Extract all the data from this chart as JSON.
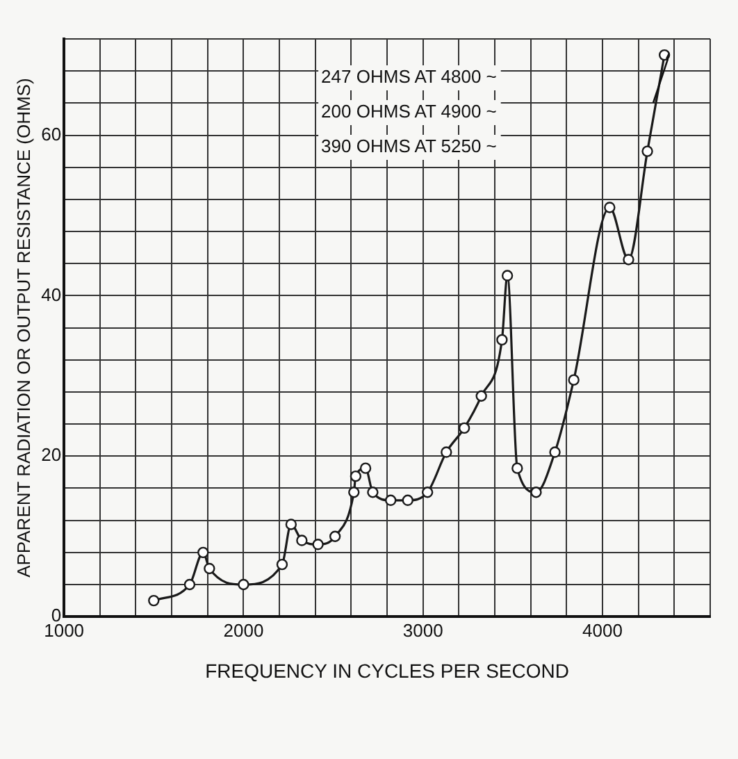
{
  "chart_data": {
    "type": "line",
    "xlabel": "FREQUENCY IN CYCLES PER SECOND",
    "ylabel": "APPARENT RADIATION OR OUTPUT RESISTANCE (OHMS)",
    "annotations": [
      "247 OHMS AT 4800 ~",
      "200 OHMS AT 4900 ~",
      "390 OHMS AT 5250 ~"
    ],
    "x": [
      1500,
      1700,
      1775,
      1810,
      2000,
      2215,
      2265,
      2325,
      2415,
      2510,
      2615,
      2625,
      2680,
      2720,
      2820,
      2915,
      3025,
      3130,
      3230,
      3325,
      3440,
      3470,
      3525,
      3630,
      3735,
      3840,
      4040,
      4145,
      4250,
      4345
    ],
    "series": [
      {
        "color": "#1a1a1a",
        "values": [
          2,
          4,
          8,
          6,
          4,
          6.5,
          11.5,
          9.5,
          9,
          10,
          15.5,
          17.5,
          18.5,
          15.5,
          14.5,
          14.5,
          15.5,
          20.5,
          23.5,
          27.5,
          34.5,
          42.5,
          18.5,
          15.5,
          20.5,
          29.5,
          51,
          44.5,
          58,
          70
        ]
      }
    ],
    "xlim": [
      1000,
      4600
    ],
    "xticks": [
      1000,
      {
        "value": 1200,
        "label": null
      },
      {
        "value": 1400,
        "label": null
      },
      {
        "value": 1600,
        "label": null
      },
      {
        "value": 1800,
        "label": null
      },
      2000,
      {
        "value": 2200,
        "label": null
      },
      {
        "value": 2400,
        "label": null
      },
      {
        "value": 2600,
        "label": null
      },
      {
        "value": 2800,
        "label": null
      },
      3000,
      {
        "value": 3200,
        "label": null
      },
      {
        "value": 3400,
        "label": null
      },
      {
        "value": 3600,
        "label": null
      },
      {
        "value": 3800,
        "label": null
      },
      4000,
      {
        "value": 4200,
        "label": null
      },
      {
        "value": 4400,
        "label": null
      },
      {
        "value": 4600,
        "label": null
      }
    ],
    "ylim": [
      0,
      72
    ],
    "yticks": [
      0,
      {
        "value": 4,
        "label": null
      },
      {
        "value": 8,
        "label": null
      },
      {
        "value": 12,
        "label": null
      },
      {
        "value": 16,
        "label": null
      },
      20,
      {
        "value": 24,
        "label": null
      },
      {
        "value": 28,
        "label": null
      },
      {
        "value": 32,
        "label": null
      },
      {
        "value": 36,
        "label": null
      },
      40,
      {
        "value": 44,
        "label": null
      },
      {
        "value": 48,
        "label": null
      },
      {
        "value": 52,
        "label": null
      },
      {
        "value": 56,
        "label": null
      },
      60,
      {
        "value": 64,
        "label": null
      },
      {
        "value": 68,
        "label": null
      },
      {
        "value": 72,
        "label": null
      }
    ],
    "grid": true,
    "marker": "circle",
    "line_style": "solid",
    "legend": false
  }
}
